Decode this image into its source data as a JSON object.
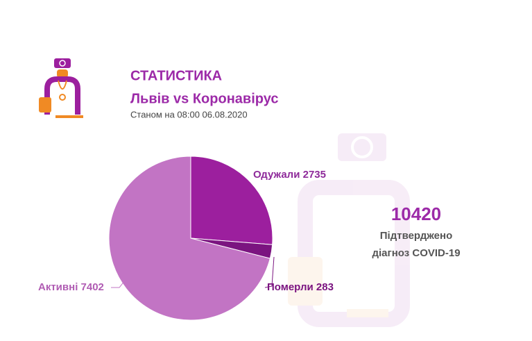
{
  "header": {
    "title": "СТАТИСТИКА",
    "subtitle": "Львів vs Коронавірус",
    "date": "Станом на 08:00 06.08.2020"
  },
  "chart_data": {
    "type": "pie",
    "categories": [
      "Одужали",
      "Померли",
      "Активні"
    ],
    "values": [
      2735,
      283,
      7402
    ],
    "colors": [
      "#9c1f9e",
      "#7b1480",
      "#c274c4"
    ]
  },
  "summary": {
    "total": 10420,
    "caption_line1": "Підтверджено",
    "caption_line2": "діагноз COVID-19"
  }
}
